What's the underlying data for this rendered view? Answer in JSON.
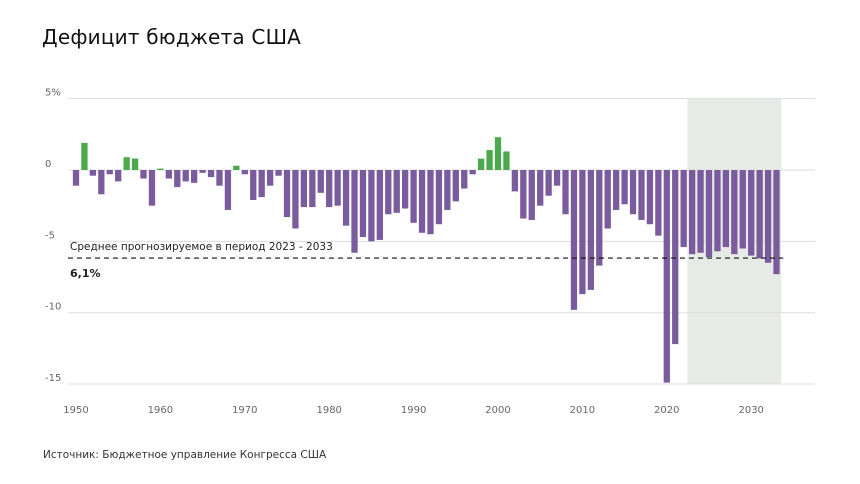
{
  "chart_data": {
    "type": "bar",
    "title": "Дефицит бюджета США",
    "xlabel": "",
    "ylabel": "",
    "ylim": [
      -15,
      5
    ],
    "y_ticks": [
      {
        "value": 5,
        "label": "5%"
      },
      {
        "value": 0,
        "label": "0"
      },
      {
        "value": -5,
        "label": "-5"
      },
      {
        "value": -10,
        "label": "-10"
      },
      {
        "value": -15,
        "label": "-15"
      }
    ],
    "x_ticks": [
      1950,
      1960,
      1970,
      1980,
      1990,
      2000,
      2010,
      2020,
      2030
    ],
    "grid": true,
    "colors": {
      "surplus": "#4CAA4C",
      "deficit": "#7A5C9E",
      "forecast_shade": "#E7EBE7",
      "grid": "#dddddd"
    },
    "x": [
      1950,
      1951,
      1952,
      1953,
      1954,
      1955,
      1956,
      1957,
      1958,
      1959,
      1960,
      1961,
      1962,
      1963,
      1964,
      1965,
      1966,
      1967,
      1968,
      1969,
      1970,
      1971,
      1972,
      1973,
      1974,
      1975,
      1976,
      1977,
      1978,
      1979,
      1980,
      1981,
      1982,
      1983,
      1984,
      1985,
      1986,
      1987,
      1988,
      1989,
      1990,
      1991,
      1992,
      1993,
      1994,
      1995,
      1996,
      1997,
      1998,
      1999,
      2000,
      2001,
      2002,
      2003,
      2004,
      2005,
      2006,
      2007,
      2008,
      2009,
      2010,
      2011,
      2012,
      2013,
      2014,
      2015,
      2016,
      2017,
      2018,
      2019,
      2020,
      2021,
      2022,
      2023,
      2024,
      2025,
      2026,
      2027,
      2028,
      2029,
      2030,
      2031,
      2032,
      2033
    ],
    "values": [
      -1.1,
      1.9,
      -0.4,
      -1.7,
      -0.3,
      -0.8,
      0.9,
      0.8,
      -0.6,
      -2.5,
      0.1,
      -0.6,
      -1.2,
      -0.8,
      -0.9,
      -0.2,
      -0.5,
      -1.1,
      -2.8,
      0.3,
      -0.3,
      -2.1,
      -1.9,
      -1.1,
      -0.4,
      -3.3,
      -4.1,
      -2.6,
      -2.6,
      -1.6,
      -2.6,
      -2.5,
      -3.9,
      -5.8,
      -4.7,
      -5.0,
      -4.9,
      -3.1,
      -3.0,
      -2.7,
      -3.7,
      -4.4,
      -4.5,
      -3.8,
      -2.8,
      -2.2,
      -1.3,
      -0.3,
      0.8,
      1.4,
      2.3,
      1.3,
      -1.5,
      -3.4,
      -3.5,
      -2.5,
      -1.8,
      -1.1,
      -3.1,
      -9.8,
      -8.7,
      -8.4,
      -6.7,
      -4.1,
      -2.8,
      -2.4,
      -3.1,
      -3.5,
      -3.8,
      -4.6,
      -14.9,
      -12.2,
      -5.4,
      -5.9,
      -5.8,
      -6.1,
      -5.7,
      -5.4,
      -5.9,
      -5.5,
      -6.0,
      -6.2,
      -6.5,
      -7.3
    ],
    "forecast_range": [
      2023,
      2033
    ],
    "reference_line": {
      "value": -6.1,
      "label": "Среднее прогнозируемое в период 2023 - 2033",
      "value_label": "6,1%",
      "style": "dashed"
    },
    "source": "Источник: Бюджетное управление Конгресса США"
  }
}
